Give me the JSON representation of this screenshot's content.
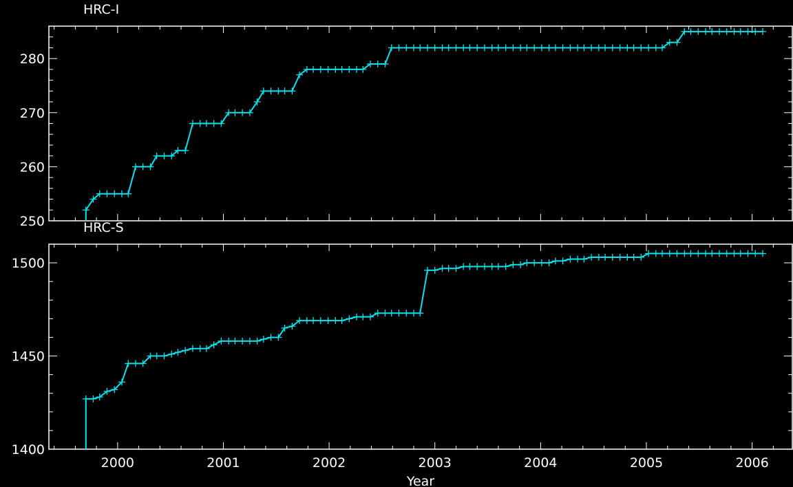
{
  "chart_data": [
    {
      "type": "line",
      "title": "HRC-I",
      "xlabel": "",
      "ylabel": "",
      "xlim": [
        1999.35,
        2006.38
      ],
      "ylim": [
        250,
        286
      ],
      "x_ticks": [
        2000,
        2001,
        2002,
        2003,
        2004,
        2005,
        2006
      ],
      "y_ticks": [
        250,
        260,
        270,
        280
      ],
      "grid": false,
      "line_color": "#00e5ee",
      "series": [
        {
          "name": "",
          "x": [
            1999.7,
            1999.77,
            1999.83,
            1999.9,
            1999.97,
            2000.04,
            2000.1,
            2000.17,
            2000.24,
            2000.31,
            2000.37,
            2000.44,
            2000.51,
            2000.57,
            2000.64,
            2000.71,
            2000.78,
            2000.84,
            2000.91,
            2000.98,
            2001.05,
            2001.11,
            2001.18,
            2001.25,
            2001.32,
            2001.38,
            2001.45,
            2001.52,
            2001.58,
            2001.65,
            2001.72,
            2001.79,
            2001.85,
            2001.92,
            2001.99,
            2002.06,
            2002.12,
            2002.19,
            2002.26,
            2002.32,
            2002.39,
            2002.46,
            2002.53,
            2002.59,
            2002.66,
            2002.73,
            2002.8,
            2002.86,
            2002.93,
            2003.0,
            2003.07,
            2003.13,
            2003.2,
            2003.27,
            2003.33,
            2003.4,
            2003.47,
            2003.54,
            2003.6,
            2003.67,
            2003.74,
            2003.81,
            2003.87,
            2003.94,
            2004.01,
            2004.08,
            2004.14,
            2004.21,
            2004.28,
            2004.35,
            2004.41,
            2004.48,
            2004.55,
            2004.61,
            2004.68,
            2004.75,
            2004.82,
            2004.88,
            2004.95,
            2005.02,
            2005.09,
            2005.15,
            2005.22,
            2005.29,
            2005.36,
            2005.42,
            2005.49,
            2005.56,
            2005.62,
            2005.69,
            2005.76,
            2005.83,
            2005.89,
            2005.96,
            2006.03,
            2006.1
          ],
          "values": [
            252,
            254,
            255,
            255,
            255,
            255,
            255,
            260,
            260,
            260,
            262,
            262,
            262,
            263,
            263,
            268,
            268,
            268,
            268,
            268,
            270,
            270,
            270,
            270,
            272,
            274,
            274,
            274,
            274,
            274,
            277,
            278,
            278,
            278,
            278,
            278,
            278,
            278,
            278,
            278,
            279,
            279,
            279,
            282,
            282,
            282,
            282,
            282,
            282,
            282,
            282,
            282,
            282,
            282,
            282,
            282,
            282,
            282,
            282,
            282,
            282,
            282,
            282,
            282,
            282,
            282,
            282,
            282,
            282,
            282,
            282,
            282,
            282,
            282,
            282,
            282,
            282,
            282,
            282,
            282,
            282,
            282,
            283,
            283,
            285,
            285,
            285,
            285,
            285,
            285,
            285,
            285,
            285,
            285,
            285,
            285
          ]
        }
      ]
    },
    {
      "type": "line",
      "title": "HRC-S",
      "xlabel": "Year",
      "ylabel": "",
      "xlim": [
        1999.35,
        2006.38
      ],
      "ylim": [
        1400,
        1510
      ],
      "x_ticks": [
        2000,
        2001,
        2002,
        2003,
        2004,
        2005,
        2006
      ],
      "y_ticks": [
        1400,
        1450,
        1500
      ],
      "grid": false,
      "line_color": "#00e5ee",
      "series": [
        {
          "name": "",
          "x": [
            1999.7,
            1999.77,
            1999.83,
            1999.9,
            1999.97,
            2000.04,
            2000.1,
            2000.17,
            2000.24,
            2000.31,
            2000.37,
            2000.44,
            2000.51,
            2000.57,
            2000.64,
            2000.71,
            2000.78,
            2000.84,
            2000.91,
            2000.98,
            2001.05,
            2001.11,
            2001.18,
            2001.25,
            2001.32,
            2001.38,
            2001.45,
            2001.52,
            2001.58,
            2001.65,
            2001.72,
            2001.79,
            2001.85,
            2001.92,
            2001.99,
            2002.06,
            2002.12,
            2002.19,
            2002.26,
            2002.32,
            2002.39,
            2002.46,
            2002.53,
            2002.59,
            2002.66,
            2002.73,
            2002.8,
            2002.86,
            2002.93,
            2003.0,
            2003.07,
            2003.13,
            2003.2,
            2003.27,
            2003.33,
            2003.4,
            2003.47,
            2003.54,
            2003.6,
            2003.67,
            2003.74,
            2003.81,
            2003.87,
            2003.94,
            2004.01,
            2004.08,
            2004.14,
            2004.21,
            2004.28,
            2004.35,
            2004.41,
            2004.48,
            2004.55,
            2004.61,
            2004.68,
            2004.75,
            2004.82,
            2004.88,
            2004.95,
            2005.02,
            2005.09,
            2005.15,
            2005.22,
            2005.29,
            2005.36,
            2005.42,
            2005.49,
            2005.56,
            2005.62,
            2005.69,
            2005.76,
            2005.83,
            2005.89,
            2005.96,
            2006.03,
            2006.1
          ],
          "values": [
            1427,
            1427,
            1428,
            1431,
            1432,
            1436,
            1446,
            1446,
            1446,
            1450,
            1450,
            1450,
            1451,
            1452,
            1453,
            1454,
            1454,
            1454,
            1456,
            1458,
            1458,
            1458,
            1458,
            1458,
            1458,
            1459,
            1460,
            1460,
            1465,
            1466,
            1469,
            1469,
            1469,
            1469,
            1469,
            1469,
            1469,
            1470,
            1471,
            1471,
            1471,
            1473,
            1473,
            1473,
            1473,
            1473,
            1473,
            1473,
            1496,
            1496,
            1497,
            1497,
            1497,
            1498,
            1498,
            1498,
            1498,
            1498,
            1498,
            1498,
            1499,
            1499,
            1500,
            1500,
            1500,
            1500,
            1501,
            1501,
            1502,
            1502,
            1502,
            1503,
            1503,
            1503,
            1503,
            1503,
            1503,
            1503,
            1503,
            1505,
            1505,
            1505,
            1505,
            1505,
            1505,
            1505,
            1505,
            1505,
            1505,
            1505,
            1505,
            1505,
            1505,
            1505,
            1505,
            1505
          ]
        }
      ]
    }
  ]
}
